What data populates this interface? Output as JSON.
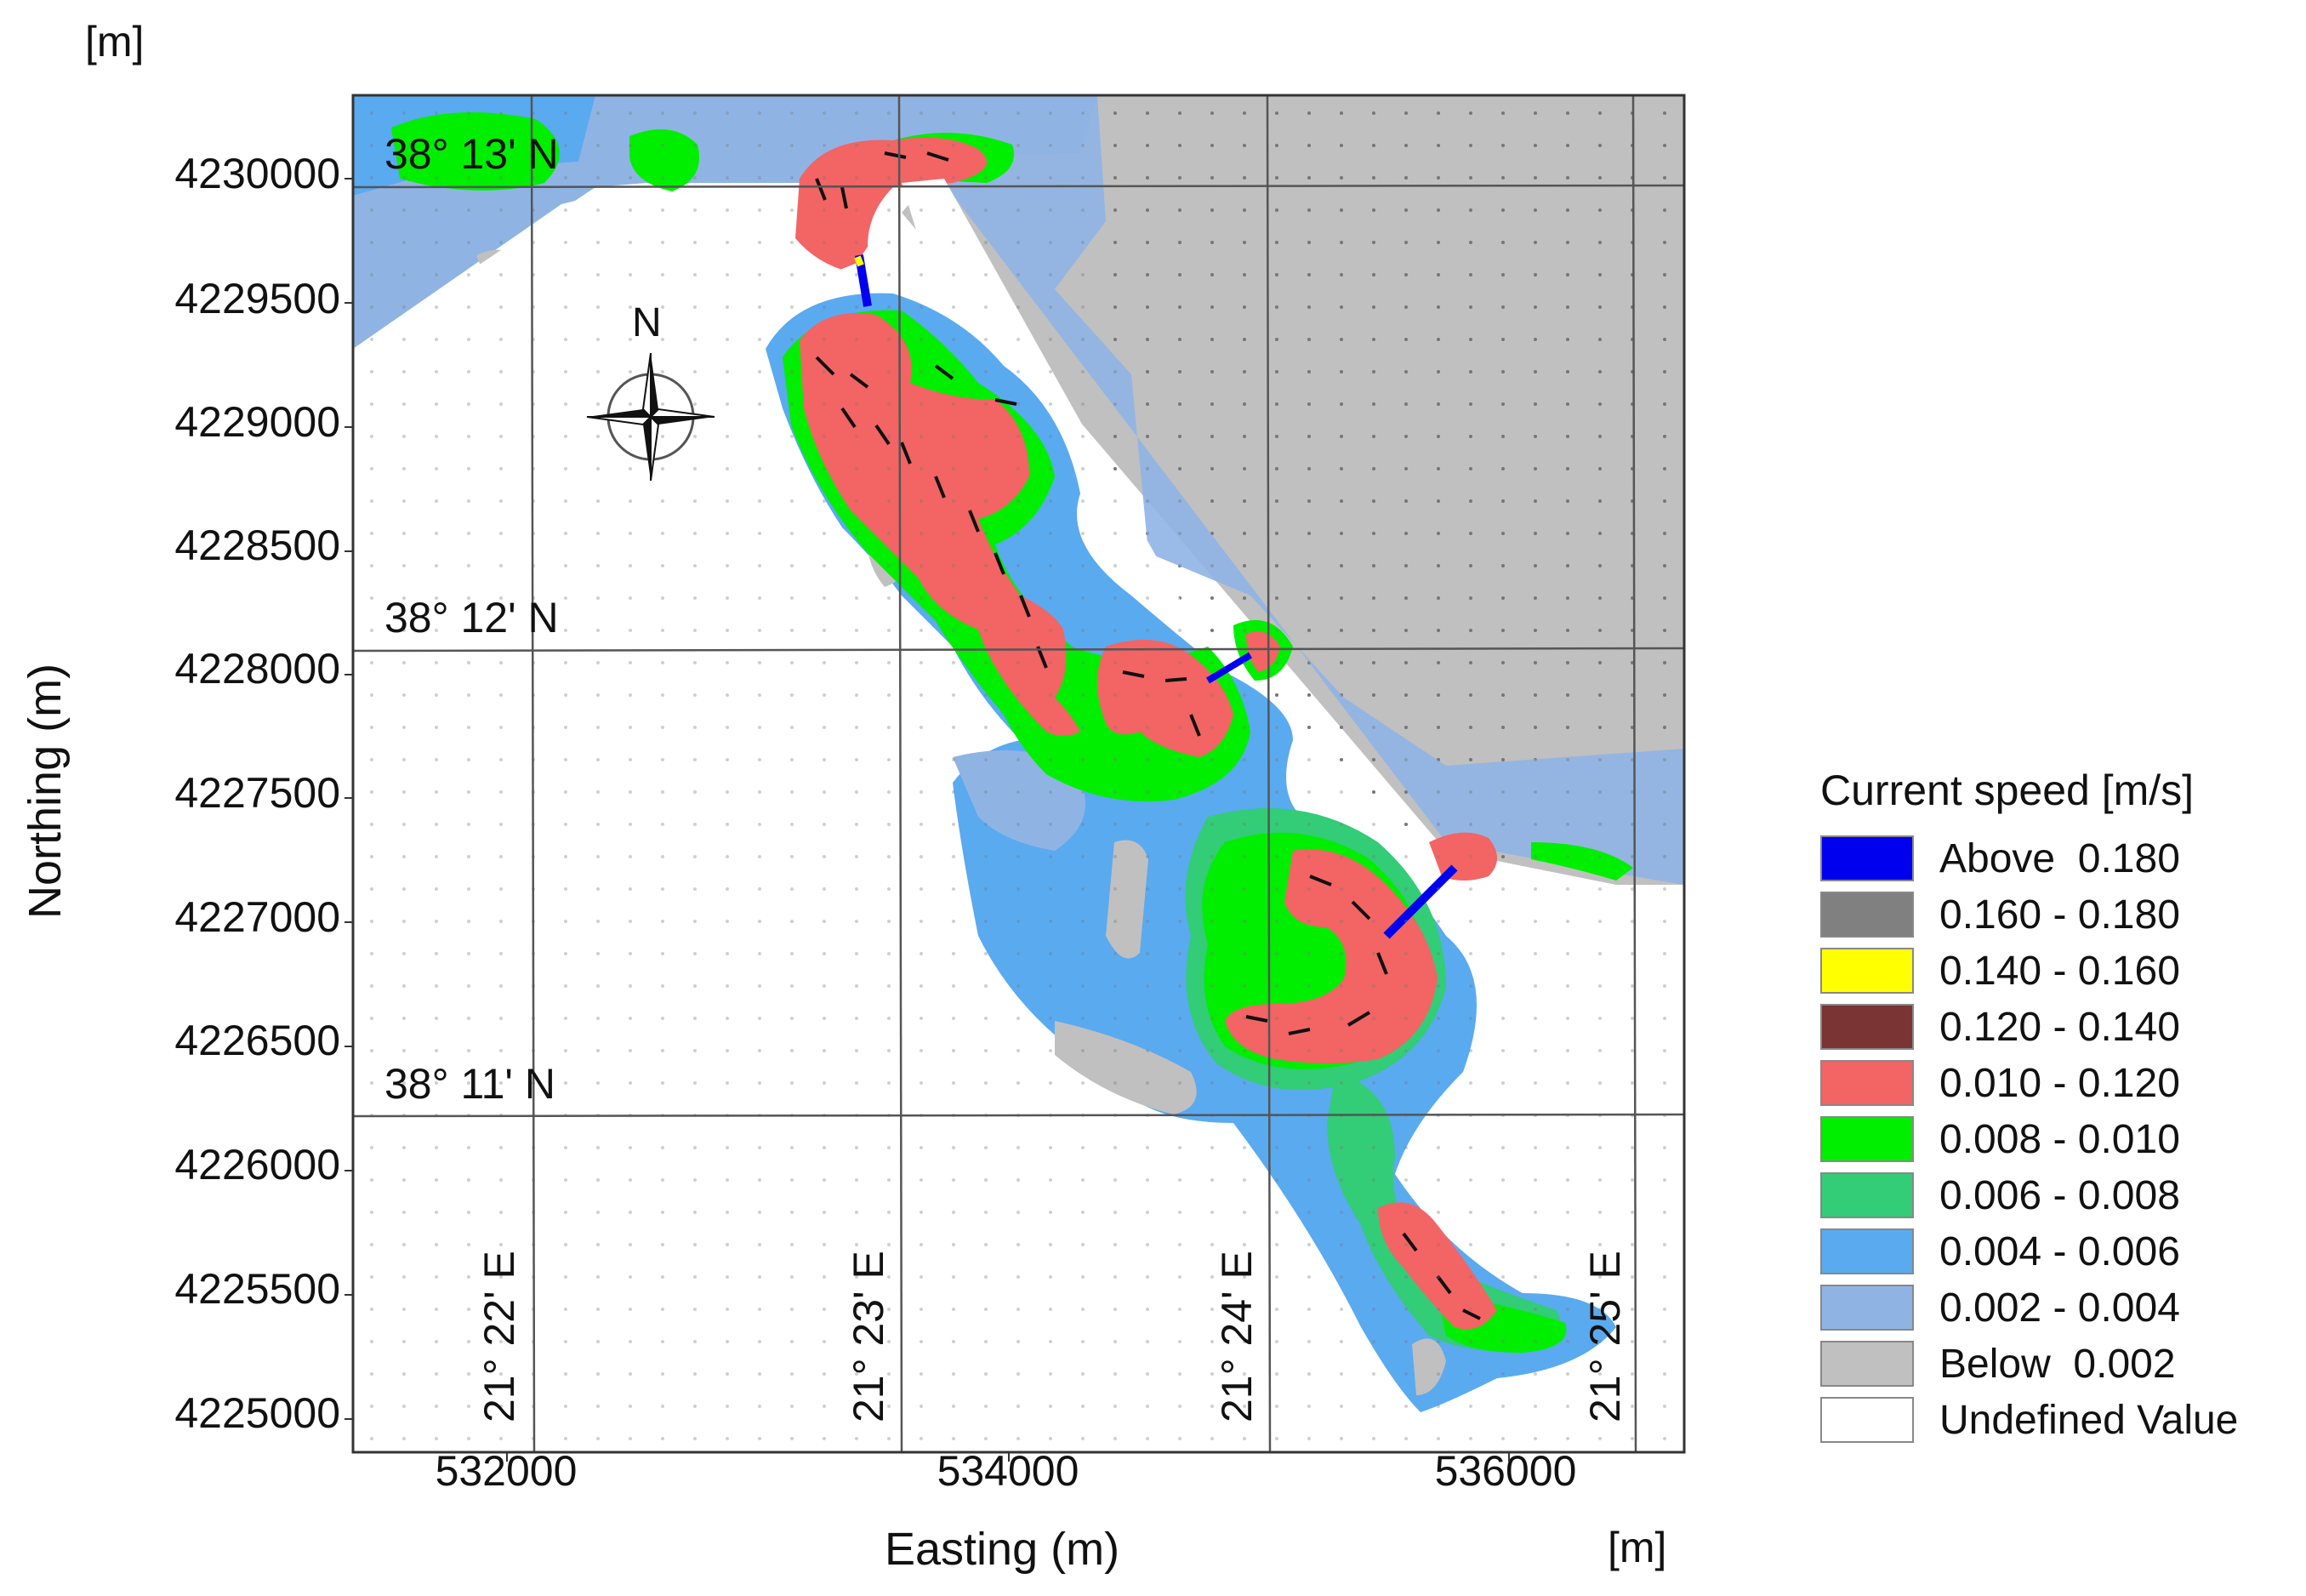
{
  "units": {
    "top_left": "[m]",
    "bottom_right": "[m]"
  },
  "axes": {
    "ylabel": "Northing (m)",
    "xlabel": "Easting (m)",
    "yticks": [
      "4230000",
      "4229500",
      "4229000",
      "4228500",
      "4228000",
      "4227500",
      "4227000",
      "4226500",
      "4226000",
      "4225500",
      "4225000"
    ],
    "xticks": [
      "532000",
      "534000",
      "536000"
    ]
  },
  "graticule": {
    "latitudes": [
      "38° 13' N",
      "38° 12' N",
      "38° 11' N"
    ],
    "longitudes": [
      "21° 22' E",
      "21° 23' E",
      "21° 24' E",
      "21° 25' E"
    ]
  },
  "compass": {
    "icon": "north-arrow-compass-rose-icon",
    "label": "N"
  },
  "legend": {
    "title": "Current speed [m/s]",
    "items": [
      {
        "label": "Above  0.180",
        "color": "#0000ee"
      },
      {
        "label": "0.160 - 0.180",
        "color": "#808080"
      },
      {
        "label": "0.140 - 0.160",
        "color": "#ffff00"
      },
      {
        "label": "0.120 - 0.140",
        "color": "#7a3434"
      },
      {
        "label": "0.010 - 0.120",
        "color": "#f36464"
      },
      {
        "label": "0.008 - 0.010",
        "color": "#00ee00"
      },
      {
        "label": "0.006 - 0.008",
        "color": "#33cc77"
      },
      {
        "label": "0.004 - 0.006",
        "color": "#5aaaf0"
      },
      {
        "label": "0.002 - 0.004",
        "color": "#8fb4e4"
      },
      {
        "label": "Below  0.002",
        "color": "#c0c0c0"
      },
      {
        "label": "Undefined Value",
        "color": "#ffffff"
      }
    ]
  }
}
